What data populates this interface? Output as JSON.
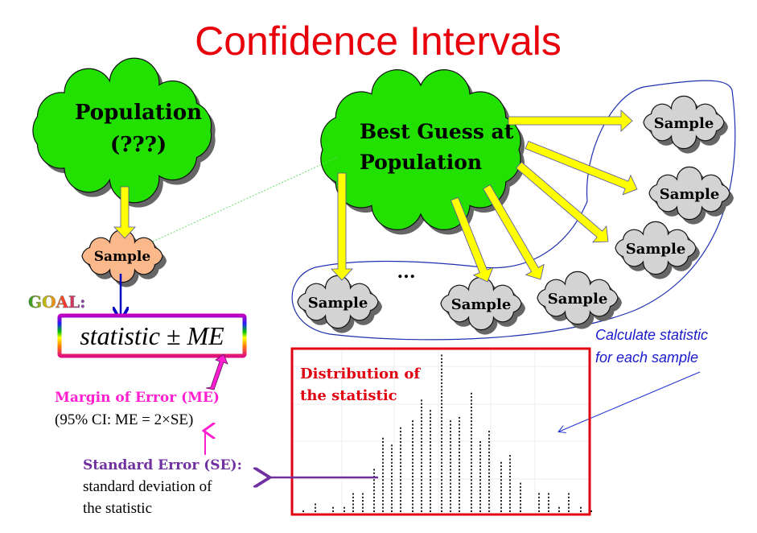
{
  "title": "Confidence Intervals",
  "population_cloud": {
    "line1": "Population",
    "line2": "(???)"
  },
  "sample_cloud": "Sample",
  "best_guess_cloud": {
    "line1": "Best Guess at",
    "line2": "Population"
  },
  "resamples": [
    "Sample",
    "Sample",
    "Sample",
    "Sample",
    "Sample",
    "Sample"
  ],
  "ellipsis": "...",
  "goal_label": "GOAL:",
  "formula": "statistic ± ME",
  "margin_of_error": {
    "title": "Margin of Error (ME)",
    "detail": "(95% CI: ME = 2×SE)"
  },
  "standard_error": {
    "title": "Standard Error (SE):",
    "line1": "standard deviation of",
    "line2": "the statistic"
  },
  "calculate_note": {
    "line1": "Calculate statistic",
    "line2": "for each sample"
  },
  "distribution": {
    "title_line1": "Distribution of",
    "title_line2": "the statistic",
    "dot_counts": [
      1,
      3,
      2,
      2,
      6,
      6,
      13,
      22,
      20,
      25,
      27,
      33,
      30,
      46,
      27,
      28,
      35,
      21,
      24,
      15,
      17,
      9,
      6,
      6,
      2,
      6,
      2,
      1
    ]
  },
  "colors": {
    "title": "#e8000b",
    "population_green": "#22e000",
    "sample_orange": "#fbb88a",
    "sample_gray": "#d3d3d3",
    "arrow_yellow": "#ffff00",
    "margin_magenta": "#ff1fd0",
    "se_purple": "#7030a0",
    "note_blue": "#1a1acc",
    "box_red": "#e00010"
  }
}
